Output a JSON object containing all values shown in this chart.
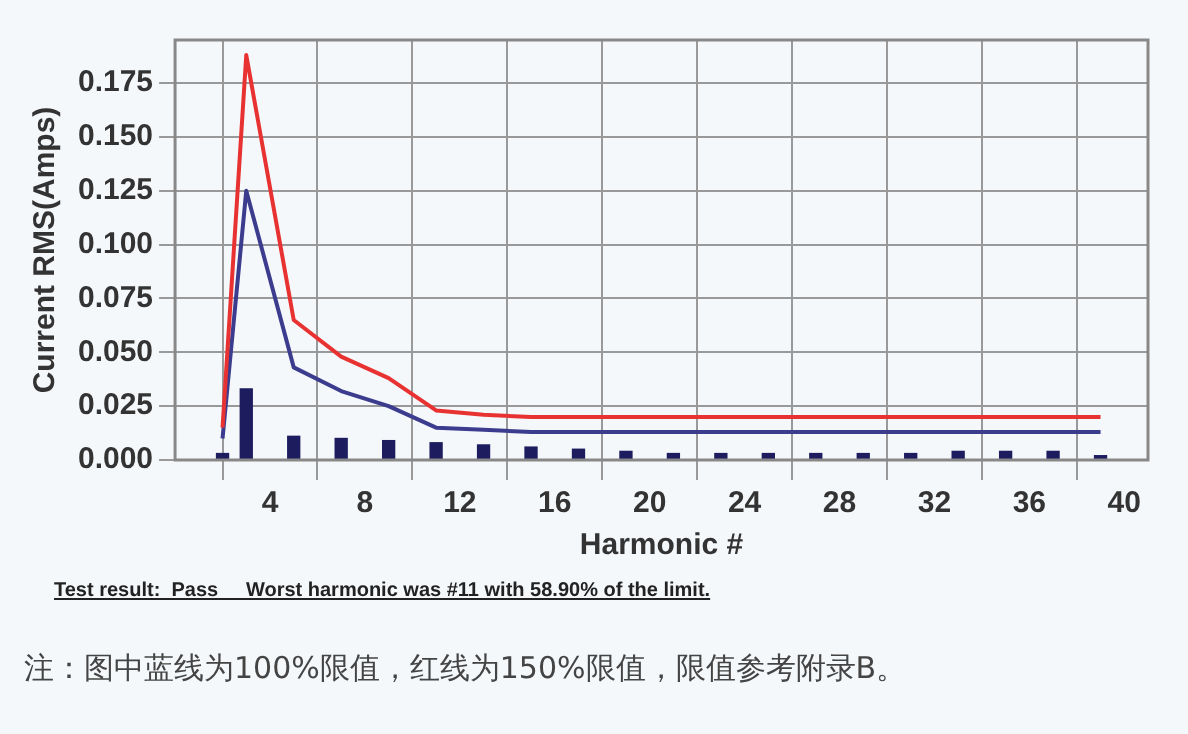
{
  "chart_data": {
    "type": "bar",
    "xlabel": "Harmonic #",
    "ylabel": "Current RMS(Amps)",
    "xlim": [
      0,
      41
    ],
    "xticks": [
      4,
      8,
      12,
      16,
      20,
      24,
      28,
      32,
      36,
      40
    ],
    "ylim": [
      0,
      0.195
    ],
    "yticks": [
      {
        "value": 0,
        "label": "0.000"
      },
      {
        "value": 0.025,
        "label": "0.025"
      },
      {
        "value": 0.05,
        "label": "0.050"
      },
      {
        "value": 0.075,
        "label": "0.075"
      },
      {
        "value": 0.1,
        "label": "0.100"
      },
      {
        "value": 0.125,
        "label": "0.125"
      },
      {
        "value": 0.15,
        "label": "0.150"
      },
      {
        "value": 0.175,
        "label": "0.175"
      }
    ],
    "grid": true,
    "legend": false,
    "series": [
      {
        "color": "#1c1c5e",
        "x": [
          2,
          3,
          5,
          7,
          9,
          11,
          13,
          15,
          17,
          19,
          21,
          23,
          25,
          27,
          29,
          31,
          33,
          35,
          37,
          39
        ],
        "values": [
          0.003,
          0.033,
          0.011,
          0.01,
          0.009,
          0.008,
          0.007,
          0.006,
          0.005,
          0.004,
          0.003,
          0.003,
          0.003,
          0.003,
          0.003,
          0.003,
          0.004,
          0.004,
          0.004,
          0.002
        ]
      },
      {
        "type": "line",
        "color": "#e83232",
        "x": [
          2,
          3,
          5,
          7,
          9,
          11,
          13,
          15,
          17,
          19,
          21,
          23,
          25,
          27,
          29,
          31,
          33,
          35,
          37,
          39
        ],
        "values": [
          0.015,
          0.188,
          0.065,
          0.048,
          0.038,
          0.023,
          0.021,
          0.02,
          0.02,
          0.02,
          0.02,
          0.02,
          0.02,
          0.02,
          0.02,
          0.02,
          0.02,
          0.02,
          0.02,
          0.02
        ]
      },
      {
        "type": "line",
        "color": "#3c3c8e",
        "x": [
          2,
          3,
          5,
          7,
          9,
          11,
          13,
          15,
          17,
          19,
          21,
          23,
          25,
          27,
          29,
          31,
          33,
          35,
          37,
          39
        ],
        "values": [
          0.01,
          0.125,
          0.043,
          0.032,
          0.025,
          0.015,
          0.014,
          0.013,
          0.013,
          0.013,
          0.013,
          0.013,
          0.013,
          0.013,
          0.013,
          0.013,
          0.013,
          0.013,
          0.013,
          0.013
        ]
      }
    ],
    "annotations": [
      "Test result:  Pass     Worst harmonic was #11 with 58.90% of the limit.",
      "注：图中蓝线为100%限值，红线为150%限值，限值参考附录B。"
    ]
  }
}
